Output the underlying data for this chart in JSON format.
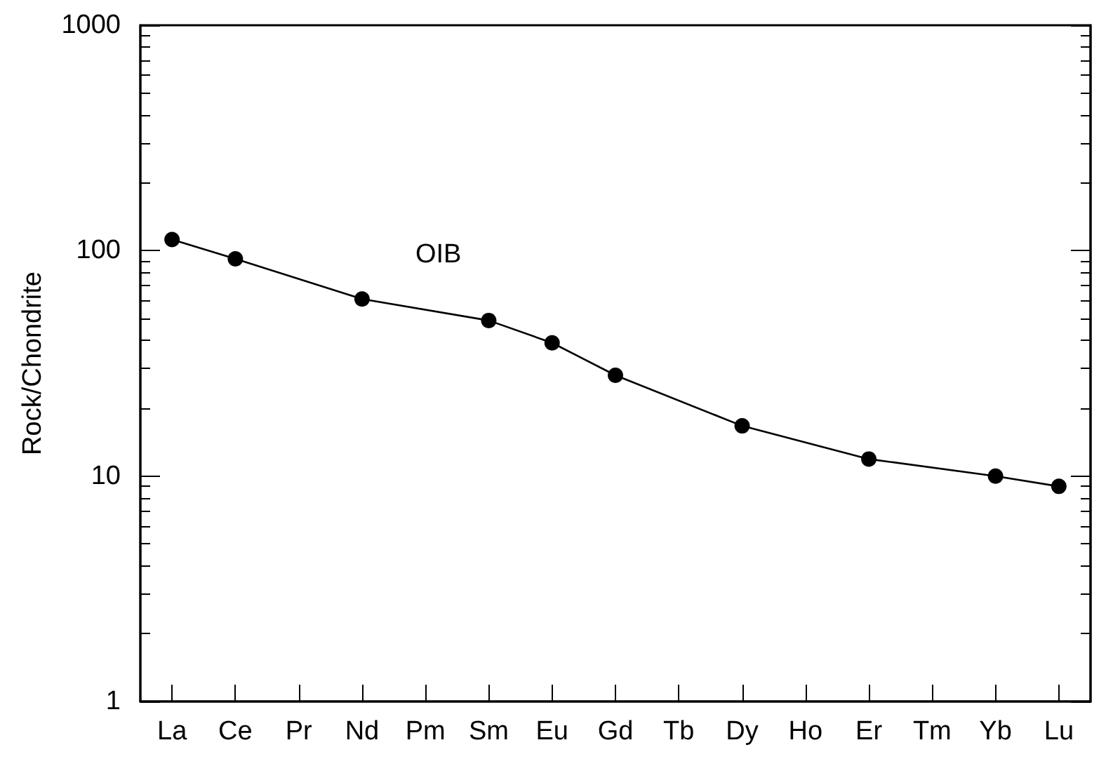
{
  "chart_data": {
    "type": "line",
    "ylabel": "Rock/Chondrite",
    "categories": [
      "La",
      "Ce",
      "Pr",
      "Nd",
      "Pm",
      "Sm",
      "Eu",
      "Gd",
      "Tb",
      "Dy",
      "Ho",
      "Er",
      "Tm",
      "Yb",
      "Lu"
    ],
    "series": [
      {
        "color": "#000000",
        "values": [
          112,
          92,
          null,
          61,
          null,
          49,
          39,
          28,
          null,
          16.7,
          null,
          11.9,
          null,
          10,
          9.0
        ]
      }
    ],
    "annotations": [
      "OIB"
    ],
    "log": "y",
    "ylim": [
      1,
      1000
    ],
    "yticks": [
      1,
      10,
      100,
      1000
    ],
    "marker": "circle",
    "line_style": "solid"
  }
}
